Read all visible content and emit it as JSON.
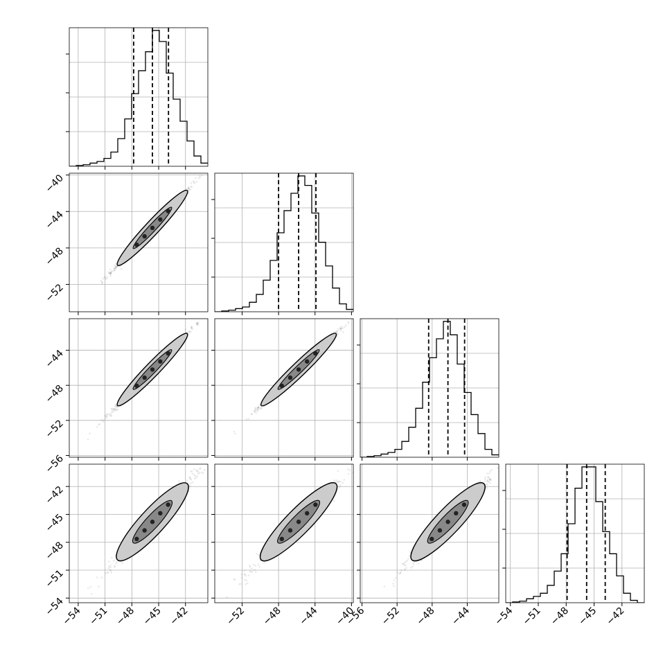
{
  "chart_data": {
    "type": "corner",
    "n_params": 4,
    "grid": true,
    "colors": {
      "hist_line": "#000000",
      "quantile_line": "#000000",
      "samples": "#555555",
      "contour_outer_fill": "#cccccc",
      "contour_inner_fill": "#222222",
      "grid": "#b0b0b0",
      "axes": "#000000"
    },
    "params": [
      {
        "range": [
          -55.0,
          -39.5
        ],
        "ticks": [
          -54,
          -51,
          -48,
          -45,
          -42
        ],
        "tick_labels": [
          "−54",
          "−51",
          "−48",
          "−45",
          "−42"
        ],
        "quantiles": [
          -47.8,
          -45.7,
          -43.9
        ],
        "hist": {
          "edges_start": -55.0,
          "bin_width": 0.775,
          "counts": [
            0,
            1,
            2,
            4,
            6,
            10,
            18,
            35,
            60,
            92,
            121,
            145,
            172,
            158,
            118,
            85,
            57,
            32,
            13,
            4
          ]
        }
      },
      {
        "range": [
          -55.0,
          -39.8
        ],
        "ticks": [
          -52,
          -48,
          -44,
          -40
        ],
        "tick_labels": [
          "−52",
          "−48",
          "−44",
          "−40"
        ],
        "quantiles": [
          -48.0,
          -45.8,
          -43.9
        ],
        "hist": {
          "edges_start": -55.0,
          "bin_width": 0.76,
          "counts": [
            0,
            1,
            2,
            4,
            6,
            12,
            22,
            40,
            65,
            100,
            128,
            150,
            172,
            160,
            125,
            88,
            58,
            30,
            10,
            3
          ]
        }
      },
      {
        "range": [
          -56.2,
          -40.4
        ],
        "ticks": [
          -56,
          -52,
          -48,
          -44
        ],
        "tick_labels": [
          "−56",
          "−52",
          "−48",
          "−44"
        ],
        "quantiles": [
          -48.4,
          -46.2,
          -44.3
        ],
        "hist": {
          "edges_start": -56.2,
          "bin_width": 0.79,
          "counts": [
            0,
            1,
            2,
            4,
            6,
            10,
            20,
            38,
            62,
            95,
            126,
            150,
            172,
            155,
            118,
            82,
            54,
            30,
            10,
            3
          ]
        }
      },
      {
        "range": [
          -54.5,
          -39.6
        ],
        "ticks": [
          -54,
          -51,
          -48,
          -45,
          -42
        ],
        "tick_labels": [
          "−54",
          "−51",
          "−48",
          "−45",
          "−42"
        ],
        "quantiles": [
          -47.9,
          -45.8,
          -43.8
        ],
        "hist": {
          "edges_start": -54.5,
          "bin_width": 0.745,
          "counts": [
            0,
            1,
            2,
            5,
            8,
            12,
            22,
            40,
            62,
            100,
            145,
            172,
            172,
            128,
            90,
            62,
            34,
            12,
            3,
            0
          ]
        }
      }
    ],
    "y_ticks": {
      "1": {
        "ticks": [
          -52,
          -48,
          -44,
          -40
        ],
        "tick_labels": [
          "−52",
          "−48",
          "−44",
          "−40"
        ]
      },
      "2": {
        "ticks": [
          -56,
          -52,
          -48,
          -44
        ],
        "tick_labels": [
          "−56",
          "−52",
          "−48",
          "−44"
        ]
      },
      "3": {
        "ticks": [
          -54,
          -51,
          -48,
          -45,
          -42
        ],
        "tick_labels": [
          "−54",
          "−51",
          "−48",
          "−45",
          "−42"
        ]
      }
    }
  }
}
